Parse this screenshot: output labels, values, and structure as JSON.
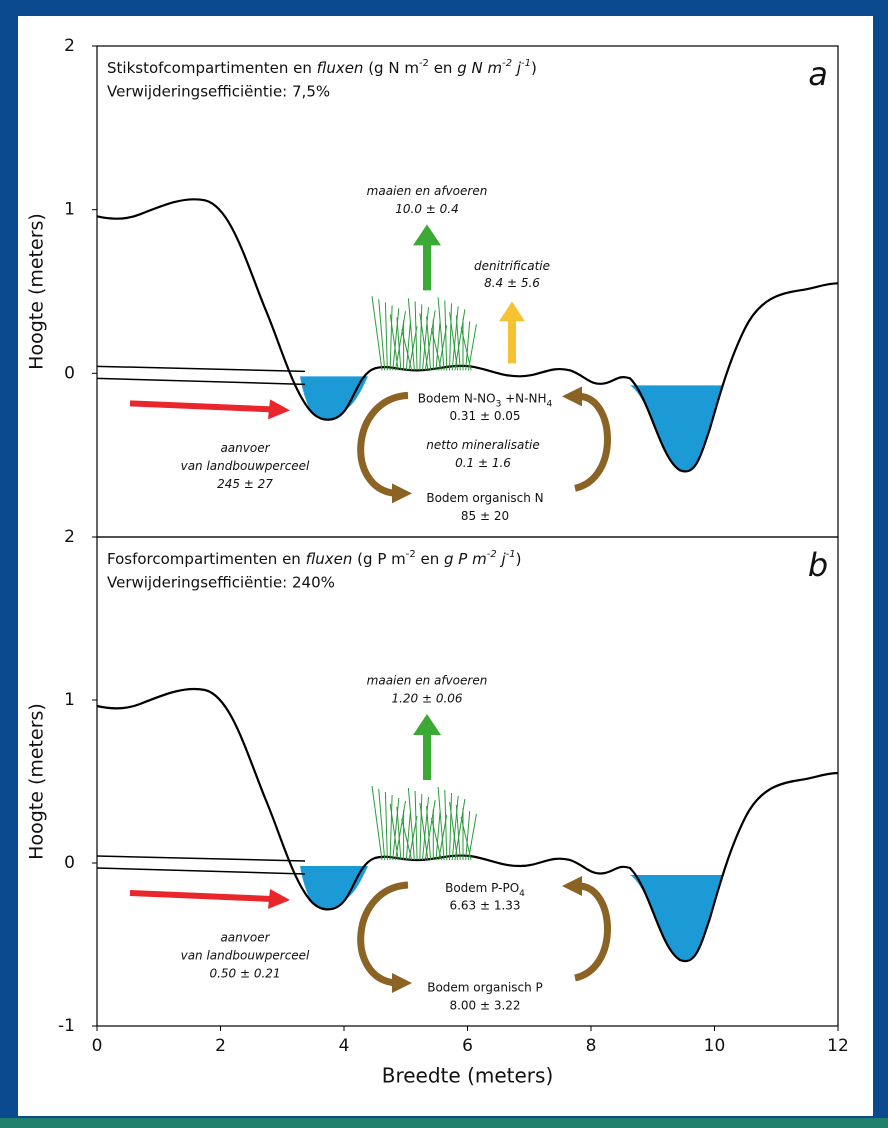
{
  "axes": {
    "x_label": "Breedte (meters)",
    "xlim": [
      0,
      12
    ],
    "xticks": [
      0,
      2,
      4,
      6,
      8,
      10,
      12
    ]
  },
  "panels": [
    {
      "label": "a",
      "title_parts": [
        "Stikstofcompartimenten en ",
        "fluxen",
        " (g N m",
        "-2",
        " en ",
        "g N m",
        "-2",
        " j",
        "-1",
        ")"
      ],
      "efficiency": "Verwijderingsefficiëntie: 7,5%",
      "y_label": "Hoogte (meters)",
      "ylim": [
        -1,
        2
      ],
      "yticks": [
        2,
        1,
        0
      ],
      "harvest": {
        "name": "maaien en afvoeren",
        "value": "10.0 ± 0.4"
      },
      "denitrification": {
        "name": "denitrificatie",
        "value": "8.4 ± 5.6"
      },
      "input": {
        "lines": [
          "aanvoer",
          "van landbouwperceel"
        ],
        "value": "245 ± 27"
      },
      "mineralization": {
        "name": "netto mineralisatie",
        "value": "0.1 ± 1.6"
      },
      "soil_mineral": {
        "parts": [
          "Bodem N-NO",
          "3",
          " +N-NH",
          "4"
        ],
        "value": "0.31 ± 0.05"
      },
      "soil_organic": {
        "name": "Bodem organisch N",
        "value": "85 ± 20"
      }
    },
    {
      "label": "b",
      "title_parts": [
        "Fosforcompartimenten en ",
        "fluxen",
        " (g P m",
        "-2",
        " en ",
        "g P m",
        "-2",
        " j",
        "-1",
        ")"
      ],
      "efficiency": "Verwijderingsefficiëntie: 240%",
      "y_label": "Hoogte (meters)",
      "ylim": [
        -1,
        2
      ],
      "yticks": [
        2,
        1,
        0,
        -1
      ],
      "harvest": {
        "name": "maaien en afvoeren",
        "value": "1.20 ± 0.06"
      },
      "input": {
        "lines": [
          "aanvoer",
          "van landbouwperceel"
        ],
        "value": "0.50 ± 0.21"
      },
      "soil_mineral": {
        "parts": [
          "Bodem P-PO",
          "4"
        ],
        "value": "6.63 ± 1.33"
      },
      "soil_organic": {
        "name": "Bodem organisch P",
        "value": "8.00 ± 3.22"
      }
    }
  ]
}
